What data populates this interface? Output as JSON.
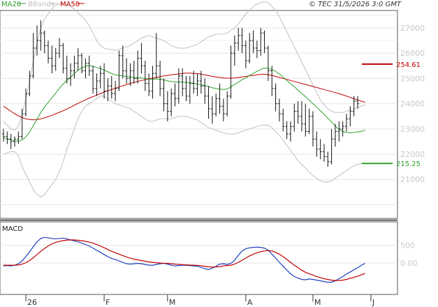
{
  "chart_data": [
    {
      "type": "line",
      "panel": "price",
      "legend": [
        {
          "name": "MA20",
          "color": "#2ca02c"
        },
        {
          "name": "BBands",
          "color": "#c0c0c0"
        },
        {
          "name": "MA50",
          "color": "#c00000"
        }
      ],
      "copyright": "© TEC 31/5/2026 3:0 GMT",
      "y_ticks": [
        "27000",
        "26000",
        "25000",
        "24000",
        "23000",
        "22000",
        "21000"
      ],
      "ylim": [
        20000,
        27500
      ],
      "x_months": [
        "26",
        "F",
        "M",
        "A",
        "M",
        "J"
      ],
      "levels": [
        {
          "label": "254.61",
          "value": 25566,
          "color": "#c00000"
        },
        {
          "label": "215.25",
          "value": 21634,
          "color": "#2ca02c"
        }
      ],
      "ohlc": [
        [
          22800,
          23000,
          22500,
          22700
        ],
        [
          22700,
          22900,
          22400,
          22600
        ],
        [
          22600,
          22800,
          22200,
          22500
        ],
        [
          22500,
          22700,
          22300,
          22600
        ],
        [
          22600,
          22900,
          22400,
          22700
        ],
        [
          22700,
          23800,
          22600,
          23600
        ],
        [
          23600,
          24600,
          23500,
          24400
        ],
        [
          24400,
          25300,
          24300,
          25100
        ],
        [
          25100,
          26800,
          25000,
          26200
        ],
        [
          26200,
          27100,
          25900,
          26500
        ],
        [
          26500,
          27300,
          26100,
          26800
        ],
        [
          26800,
          26900,
          26000,
          26300
        ],
        [
          26300,
          26500,
          25600,
          25800
        ],
        [
          25800,
          26300,
          25200,
          25500
        ],
        [
          25500,
          26200,
          25300,
          26000
        ],
        [
          26000,
          26600,
          25800,
          26300
        ],
        [
          26300,
          26400,
          25200,
          25400
        ],
        [
          25400,
          25900,
          24800,
          25000
        ],
        [
          25000,
          25600,
          24700,
          25300
        ],
        [
          25300,
          25900,
          25000,
          25600
        ],
        [
          25600,
          26200,
          25300,
          25900
        ],
        [
          25900,
          26000,
          25200,
          25300
        ],
        [
          25300,
          25800,
          25000,
          25600
        ],
        [
          25600,
          25900,
          25100,
          25300
        ],
        [
          25300,
          25500,
          24400,
          24600
        ],
        [
          24600,
          25200,
          24300,
          24900
        ],
        [
          24900,
          25500,
          24600,
          25200
        ],
        [
          25200,
          25600,
          24200,
          24500
        ],
        [
          24500,
          25000,
          24100,
          24700
        ],
        [
          24700,
          25100,
          24200,
          24400
        ],
        [
          24400,
          24900,
          24100,
          24600
        ],
        [
          24600,
          26100,
          24500,
          25900
        ],
        [
          25900,
          26300,
          25000,
          25300
        ],
        [
          25300,
          25800,
          24800,
          25000
        ],
        [
          25000,
          25600,
          24700,
          25300
        ],
        [
          25300,
          25700,
          24800,
          25000
        ],
        [
          25000,
          26100,
          24800,
          25800
        ],
        [
          25800,
          26400,
          25200,
          25500
        ],
        [
          25500,
          25700,
          24500,
          24800
        ],
        [
          24800,
          25200,
          24300,
          24500
        ],
        [
          24500,
          25500,
          24200,
          25200
        ],
        [
          25200,
          26800,
          25000,
          25500
        ],
        [
          25500,
          25700,
          24300,
          24600
        ],
        [
          24600,
          25000,
          23700,
          24000
        ],
        [
          24000,
          24500,
          23300,
          23700
        ],
        [
          23700,
          24600,
          23500,
          24400
        ],
        [
          24400,
          24800,
          23900,
          24200
        ],
        [
          24200,
          25400,
          24000,
          25100
        ],
        [
          25100,
          25400,
          24300,
          24600
        ],
        [
          24600,
          25100,
          24100,
          24300
        ],
        [
          24300,
          25100,
          24000,
          24800
        ],
        [
          24800,
          25300,
          24400,
          24600
        ],
        [
          24600,
          25200,
          24300,
          24900
        ],
        [
          24900,
          25300,
          24400,
          24700
        ],
        [
          24700,
          25000,
          24000,
          24300
        ],
        [
          24300,
          24700,
          23400,
          23800
        ],
        [
          23800,
          24300,
          23200,
          23600
        ],
        [
          23600,
          24400,
          23500,
          24200
        ],
        [
          24200,
          24800,
          23600,
          23900
        ],
        [
          23900,
          24200,
          23300,
          23600
        ],
        [
          23600,
          24500,
          23500,
          24300
        ],
        [
          24300,
          26300,
          24200,
          26000
        ],
        [
          26000,
          26700,
          25500,
          26400
        ],
        [
          26400,
          27000,
          26100,
          26700
        ],
        [
          26700,
          27000,
          26000,
          26300
        ],
        [
          26300,
          26500,
          25400,
          25700
        ],
        [
          25700,
          26800,
          25600,
          26500
        ],
        [
          26500,
          26900,
          26000,
          26200
        ],
        [
          26200,
          26500,
          25800,
          26100
        ],
        [
          26100,
          27000,
          25900,
          26800
        ],
        [
          26800,
          26900,
          26000,
          26200
        ],
        [
          26200,
          26300,
          24900,
          25300
        ],
        [
          25300,
          25500,
          24300,
          24600
        ],
        [
          24600,
          24800,
          23700,
          24000
        ],
        [
          24000,
          24200,
          23300,
          23600
        ],
        [
          23600,
          23800,
          22900,
          23100
        ],
        [
          23100,
          23300,
          22600,
          22800
        ],
        [
          22800,
          23300,
          22500,
          23100
        ],
        [
          23100,
          24000,
          22900,
          23700
        ],
        [
          23700,
          24100,
          23200,
          23500
        ],
        [
          23500,
          24100,
          22900,
          23200
        ],
        [
          23200,
          24000,
          22700,
          22900
        ],
        [
          22900,
          23800,
          22800,
          23500
        ],
        [
          23500,
          23700,
          22300,
          22600
        ],
        [
          22600,
          22900,
          21900,
          22200
        ],
        [
          22200,
          22600,
          21800,
          22100
        ],
        [
          22100,
          22400,
          21700,
          21900
        ],
        [
          21900,
          22100,
          21500,
          21700
        ],
        [
          21700,
          23000,
          21600,
          22600
        ],
        [
          22600,
          23200,
          22300,
          22900
        ],
        [
          22900,
          23300,
          22500,
          23000
        ],
        [
          23000,
          23300,
          22700,
          23100
        ],
        [
          23100,
          23600,
          22900,
          23400
        ],
        [
          23400,
          23900,
          23100,
          23700
        ],
        [
          23700,
          24300,
          23500,
          24100
        ],
        [
          24100,
          24300,
          23800,
          24000
        ]
      ],
      "ma20": [
        22650,
        22600,
        22560,
        22530,
        22510,
        22560,
        22690,
        22880,
        23130,
        23390,
        23650,
        23870,
        24050,
        24230,
        24420,
        24610,
        24780,
        24920,
        25050,
        25190,
        25330,
        25420,
        25480,
        25510,
        25480,
        25430,
        25390,
        25330,
        25260,
        25190,
        25140,
        25120,
        25100,
        25080,
        25060,
        25040,
        25030,
        25020,
        25000,
        24970,
        24960,
        24980,
        24970,
        24940,
        24900,
        24880,
        24860,
        24860,
        24850,
        24840,
        24830,
        24810,
        24780,
        24750,
        24720,
        24680,
        24630,
        24600,
        24580,
        24560,
        24580,
        24660,
        24760,
        24860,
        24950,
        25020,
        25110,
        25200,
        25280,
        25360,
        25410,
        25400,
        25350,
        25280,
        25180,
        25060,
        24920,
        24790,
        24670,
        24540,
        24410,
        24280,
        24140,
        24000,
        23860,
        23720,
        23580,
        23420,
        23280,
        23110,
        22980,
        22900,
        22860,
        22850,
        22860,
        22880,
        22900,
        22960
      ],
      "bb_upper": [
        23300,
        23150,
        23000,
        22950,
        23100,
        23600,
        24200,
        24900,
        25700,
        26400,
        27000,
        27350,
        27550,
        27750,
        27900,
        27950,
        27950,
        27900,
        27850,
        27750,
        27600,
        27450,
        27300,
        27100,
        26800,
        26500,
        26300,
        26200,
        26150,
        26150,
        26100,
        26150,
        26200,
        26250,
        26300,
        26400,
        26500,
        26600,
        26650,
        26700,
        26650,
        26600,
        26550,
        26500,
        26400,
        26300,
        26250,
        26200,
        26200,
        26200,
        26250,
        26300,
        26350,
        26450,
        26550,
        26650,
        26700,
        26750,
        26750,
        26750,
        26800,
        26900,
        27000,
        27150,
        27350,
        27550,
        27700,
        27850,
        27950,
        28000,
        28050,
        28000,
        27850,
        27700,
        27450,
        27150,
        26850,
        26550,
        26250,
        25950,
        25650,
        25350,
        25050,
        24750,
        24450,
        24150,
        23950,
        23800,
        23700,
        23650,
        23650,
        23650,
        23700,
        23750,
        23800,
        23850,
        23900,
        23950
      ],
      "bb_lower": [
        22000,
        22050,
        22100,
        22100,
        21950,
        21500,
        21200,
        20900,
        20600,
        20400,
        20300,
        20400,
        20600,
        20800,
        21000,
        21300,
        21700,
        22200,
        22600,
        23000,
        23400,
        23700,
        23900,
        24000,
        24100,
        24200,
        24300,
        24300,
        24200,
        24100,
        24000,
        23950,
        23900,
        23850,
        23800,
        23700,
        23600,
        23500,
        23400,
        23300,
        23300,
        23350,
        23400,
        23400,
        23400,
        23400,
        23450,
        23500,
        23500,
        23500,
        23450,
        23400,
        23350,
        23250,
        23150,
        23050,
        23000,
        22950,
        22900,
        22850,
        22800,
        22800,
        22800,
        22850,
        22900,
        22950,
        23000,
        23050,
        23100,
        23150,
        23150,
        23150,
        23050,
        22900,
        22750,
        22550,
        22350,
        22150,
        21950,
        21750,
        21600,
        21450,
        21300,
        21150,
        21050,
        20950,
        20900,
        20900,
        20950,
        21050,
        21150,
        21250,
        21350,
        21450,
        21550,
        21600,
        21620,
        21640
      ],
      "ma50": [
        23900,
        23800,
        23700,
        23600,
        23520,
        23450,
        23400,
        23370,
        23360,
        23370,
        23400,
        23440,
        23490,
        23540,
        23600,
        23660,
        23720,
        23790,
        23860,
        23940,
        24010,
        24080,
        24150,
        24220,
        24280,
        24340,
        24400,
        24460,
        24510,
        24560,
        24610,
        24660,
        24710,
        24760,
        24800,
        24840,
        24880,
        24920,
        24950,
        24980,
        25010,
        25040,
        25070,
        25100,
        25120,
        25140,
        25160,
        25180,
        25200,
        25210,
        25210,
        25200,
        25190,
        25170,
        25140,
        25110,
        25080,
        25060,
        25040,
        25020,
        25010,
        25010,
        25020,
        25040,
        25060,
        25080,
        25100,
        25120,
        25140,
        25160,
        25170,
        25150,
        25120,
        25080,
        25040,
        25000,
        24960,
        24920,
        24880,
        24840,
        24800,
        24760,
        24720,
        24680,
        24640,
        24600,
        24560,
        24520,
        24480,
        24440,
        24400,
        24350,
        24300,
        24250,
        24200,
        24150,
        24100,
        24050
      ]
    },
    {
      "type": "line",
      "panel": "macd",
      "title": "MACD",
      "y_ticks": [
        "500",
        "0.00"
      ],
      "ylim": [
        -600,
        1000
      ],
      "series": [
        {
          "color": "#1f3fbf",
          "values": [
            -80,
            -70,
            -80,
            -60,
            -20,
            60,
            180,
            320,
            460,
            600,
            690,
            720,
            710,
            690,
            680,
            690,
            700,
            680,
            650,
            620,
            600,
            560,
            520,
            480,
            420,
            360,
            300,
            240,
            180,
            130,
            100,
            60,
            20,
            -20,
            -30,
            -20,
            -10,
            -20,
            -40,
            -60,
            -60,
            -40,
            -20,
            -10,
            -30,
            -60,
            -80,
            -70,
            -60,
            -60,
            -70,
            -80,
            -90,
            -120,
            -160,
            -180,
            -150,
            -90,
            -30,
            -20,
            -40,
            -10,
            80,
            220,
            340,
            400,
            430,
            440,
            450,
            440,
            420,
            360,
            250,
            140,
            20,
            -90,
            -200,
            -300,
            -380,
            -420,
            -460,
            -470,
            -450,
            -460,
            -480,
            -500,
            -520,
            -540,
            -540,
            -500,
            -440,
            -380,
            -310,
            -250,
            -190,
            -130,
            -60,
            -10
          ]
        },
        {
          "color": "#c00000",
          "values": [
            -60,
            -60,
            -60,
            -60,
            -55,
            -30,
            10,
            70,
            150,
            240,
            330,
            410,
            480,
            540,
            580,
            610,
            630,
            645,
            650,
            650,
            640,
            630,
            610,
            590,
            560,
            520,
            480,
            430,
            380,
            330,
            290,
            250,
            210,
            170,
            140,
            110,
            90,
            70,
            50,
            30,
            20,
            10,
            0,
            -5,
            -10,
            -20,
            -30,
            -40,
            -45,
            -50,
            -55,
            -60,
            -65,
            -75,
            -90,
            -105,
            -110,
            -110,
            -100,
            -80,
            -70,
            -60,
            -30,
            20,
            80,
            140,
            200,
            250,
            290,
            320,
            340,
            350,
            340,
            300,
            250,
            180,
            100,
            20,
            -60,
            -130,
            -200,
            -260,
            -300,
            -340,
            -380,
            -410,
            -440,
            -460,
            -480,
            -490,
            -490,
            -480,
            -460,
            -430,
            -400,
            -370,
            -330,
            -290
          ]
        }
      ]
    }
  ]
}
